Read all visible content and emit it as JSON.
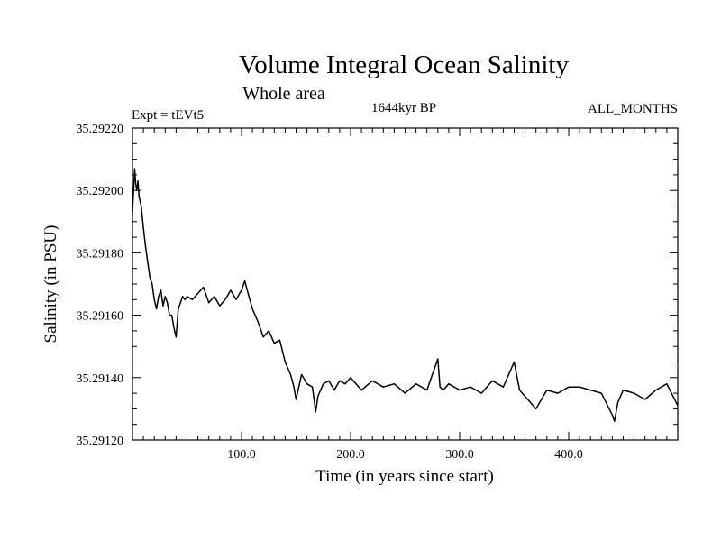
{
  "chart_data": {
    "type": "line",
    "title": "Volume Integral Ocean Salinity",
    "subtitle": "Whole area",
    "experiment": "Expt = tEVt5",
    "period": "1644kyr BP",
    "months": "ALL_MONTHS",
    "xlabel": "Time (in years since start)",
    "ylabel": "Salinity (in PSU)",
    "xlim": [
      0,
      500
    ],
    "ylim": [
      35.2912,
      35.2922
    ],
    "x_ticks": [
      100,
      200,
      300,
      400
    ],
    "x_tick_labels": [
      "100.0",
      "200.0",
      "300.0",
      "400.0"
    ],
    "y_ticks": [
      35.2912,
      35.2914,
      35.2916,
      35.2918,
      35.292,
      35.2922
    ],
    "y_tick_labels": [
      "35.29120",
      "35.29140",
      "35.29160",
      "35.29180",
      "35.29200",
      "35.29220"
    ],
    "series": [
      {
        "name": "Salinity",
        "x": [
          0,
          1,
          2,
          3,
          4,
          5,
          6,
          8,
          10,
          12,
          14,
          16,
          18,
          20,
          22,
          24,
          26,
          28,
          30,
          32,
          34,
          36,
          38,
          40,
          42,
          44,
          46,
          48,
          50,
          55,
          60,
          65,
          70,
          75,
          80,
          85,
          90,
          95,
          100,
          103,
          106,
          110,
          115,
          120,
          125,
          130,
          135,
          140,
          145,
          148,
          150,
          155,
          160,
          165,
          168,
          170,
          175,
          180,
          185,
          190,
          195,
          200,
          210,
          220,
          230,
          240,
          250,
          260,
          270,
          280,
          282,
          285,
          290,
          300,
          310,
          320,
          330,
          340,
          350,
          355,
          360,
          370,
          380,
          390,
          400,
          410,
          420,
          430,
          440,
          442,
          445,
          450,
          460,
          470,
          480,
          490,
          500
        ],
        "values": [
          35.29193,
          35.292,
          35.29207,
          35.29202,
          35.292,
          35.29203,
          35.29198,
          35.29195,
          35.29188,
          35.29182,
          35.29177,
          35.29172,
          35.2917,
          35.29165,
          35.29162,
          35.29166,
          35.29168,
          35.29163,
          35.29166,
          35.29164,
          35.2916,
          35.2916,
          35.29156,
          35.29153,
          35.29162,
          35.29164,
          35.29166,
          35.29165,
          35.29166,
          35.29165,
          35.29167,
          35.29169,
          35.29164,
          35.29166,
          35.29163,
          35.29165,
          35.29168,
          35.29165,
          35.29168,
          35.29171,
          35.29167,
          35.29162,
          35.29158,
          35.29153,
          35.29155,
          35.29151,
          35.29152,
          35.29145,
          35.29141,
          35.29137,
          35.29133,
          35.29141,
          35.29138,
          35.29137,
          35.29129,
          35.29134,
          35.29138,
          35.29139,
          35.29136,
          35.29139,
          35.29138,
          35.2914,
          35.29136,
          35.29139,
          35.29137,
          35.29138,
          35.29135,
          35.29138,
          35.29136,
          35.29146,
          35.29137,
          35.29136,
          35.29138,
          35.29136,
          35.29137,
          35.29135,
          35.29139,
          35.29137,
          35.29145,
          35.29136,
          35.29134,
          35.2913,
          35.29136,
          35.29135,
          35.29137,
          35.29137,
          35.29136,
          35.29135,
          35.29128,
          35.29126,
          35.29132,
          35.29136,
          35.29135,
          35.29133,
          35.29136,
          35.29138,
          35.29131
        ]
      }
    ]
  }
}
